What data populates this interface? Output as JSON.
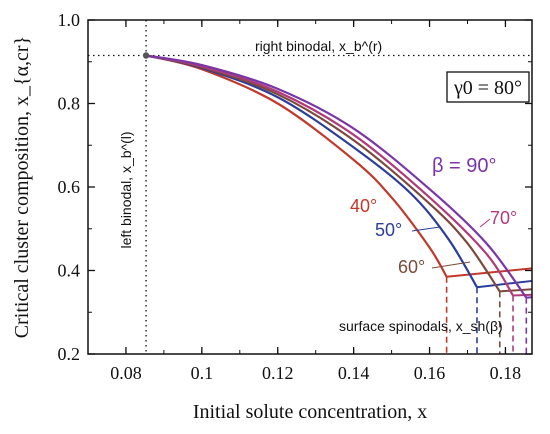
{
  "chart_data": {
    "type": "line",
    "xlabel": "Initial solute concentration, x",
    "ylabel": "Critical cluster composition, x_{α,cr}",
    "xlim": [
      0.07,
      0.187
    ],
    "ylim": [
      0.2,
      1.0
    ],
    "xticks": [
      "0.08",
      "0.1",
      "0.12",
      "0.14",
      "0.16",
      "0.18"
    ],
    "xtick_values": [
      0.08,
      0.1,
      0.12,
      0.14,
      0.16,
      0.18
    ],
    "yticks": [
      "0.2",
      "0.4",
      "0.6",
      "0.8",
      "1.0"
    ],
    "ytick_values": [
      0.2,
      0.4,
      0.6,
      0.8,
      1.0
    ],
    "box_label": "γ0 = 80°",
    "annotations": {
      "right_binodal": "right binodal, x_b^(r)",
      "left_binodal": "left binodal, x_b^(l)",
      "surface_spinodals": "surface spinodals, x_sh(β)"
    },
    "right_binodal_y": 0.915,
    "left_binodal_x": 0.0853,
    "start_point": [
      0.0853,
      0.915
    ],
    "series": [
      {
        "name": "40°",
        "label_text": "40°",
        "color": "#c0392b",
        "x": [
          0.0853,
          0.1,
          0.12,
          0.14,
          0.15,
          0.16,
          0.1645
        ],
        "y": [
          0.915,
          0.882,
          0.8,
          0.665,
          0.575,
          0.455,
          0.385
        ],
        "spinodal_x": 0.1645,
        "tail_x": [
          0.1645,
          0.187
        ],
        "tail_y": [
          0.385,
          0.405
        ]
      },
      {
        "name": "50°",
        "label_text": "50°",
        "color": "#2c3e9a",
        "x": [
          0.0853,
          0.1,
          0.12,
          0.14,
          0.155,
          0.165,
          0.1725
        ],
        "y": [
          0.915,
          0.885,
          0.815,
          0.695,
          0.585,
          0.475,
          0.36
        ],
        "spinodal_x": 0.1725,
        "tail_x": [
          0.1725,
          0.187
        ],
        "tail_y": [
          0.36,
          0.375
        ]
      },
      {
        "name": "60°",
        "label_text": "60°",
        "color": "#7b4a3a",
        "x": [
          0.0853,
          0.1,
          0.12,
          0.14,
          0.16,
          0.17,
          0.1785
        ],
        "y": [
          0.915,
          0.887,
          0.822,
          0.712,
          0.56,
          0.465,
          0.35
        ],
        "spinodal_x": 0.1785,
        "tail_x": [
          0.1785,
          0.187
        ],
        "tail_y": [
          0.35,
          0.355
        ]
      },
      {
        "name": "70°",
        "label_text": "70°",
        "color": "#b03a7a",
        "x": [
          0.0853,
          0.1,
          0.12,
          0.14,
          0.16,
          0.175,
          0.182
        ],
        "y": [
          0.915,
          0.889,
          0.828,
          0.725,
          0.575,
          0.44,
          0.34
        ],
        "spinodal_x": 0.182,
        "tail_x": [
          0.182,
          0.187
        ],
        "tail_y": [
          0.34,
          0.342
        ]
      },
      {
        "name": "β = 90°",
        "label_text": "β = 90°",
        "color": "#7a35a8",
        "x": [
          0.0853,
          0.1,
          0.12,
          0.14,
          0.16,
          0.175,
          0.1855
        ],
        "y": [
          0.915,
          0.892,
          0.835,
          0.74,
          0.595,
          0.465,
          0.335
        ],
        "spinodal_x": 0.1855,
        "tail_x": [
          0.1855,
          0.187
        ],
        "tail_y": [
          0.335,
          0.336
        ]
      }
    ]
  }
}
